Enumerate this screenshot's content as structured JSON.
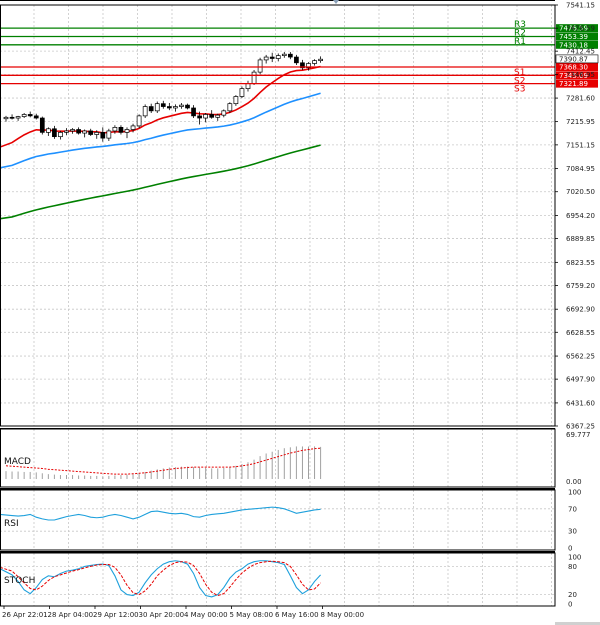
{
  "chart_data": {
    "type": "candlestick",
    "price_ticks": [
      "7541.15",
      "7476.59",
      "7412.45",
      "7346.95",
      "7281.60",
      "7215.95",
      "7151.15",
      "7084.95",
      "7020.50",
      "6954.20",
      "6889.85",
      "6823.55",
      "6759.20",
      "6692.90",
      "6628.55",
      "6562.25",
      "6497.90",
      "6431.60",
      "6367.25"
    ],
    "x_labels": [
      "26 Apr 22:01",
      "28 Apr 04:00",
      "29 Apr 12:00",
      "30 Apr 20:00",
      "4 May 00:00",
      "5 May 08:00",
      "6 May 16:00",
      "8 May 00:00"
    ],
    "current_price": "7390.87",
    "pivot_levels": [
      {
        "name": "R3",
        "value": 7476.59,
        "tag": "7476.59",
        "color": "#008000"
      },
      {
        "name": "R2",
        "value": 7453.39,
        "tag": "7453.39",
        "color": "#008000"
      },
      {
        "name": "R1",
        "value": 7430.18,
        "tag": "7430.18",
        "color": "#008000"
      },
      {
        "name": "S1",
        "value": 7368.3,
        "tag": "7368.30",
        "color": "#e60000"
      },
      {
        "name": "S2",
        "value": 7345.09,
        "tag": "7345.09",
        "color": "#e60000"
      },
      {
        "name": "S3",
        "value": 7321.89,
        "tag": "7321.89",
        "color": "#e60000"
      }
    ],
    "candles": [
      [
        7224,
        7232,
        7216,
        7228
      ],
      [
        7228,
        7236,
        7222,
        7226
      ],
      [
        7226,
        7232,
        7218,
        7230
      ],
      [
        7230,
        7240,
        7226,
        7236
      ],
      [
        7236,
        7244,
        7228,
        7232
      ],
      [
        7232,
        7238,
        7222,
        7226
      ],
      [
        7226,
        7230,
        7180,
        7186
      ],
      [
        7186,
        7200,
        7176,
        7196
      ],
      [
        7196,
        7204,
        7168,
        7174
      ],
      [
        7174,
        7190,
        7166,
        7186
      ],
      [
        7186,
        7198,
        7178,
        7190
      ],
      [
        7190,
        7198,
        7182,
        7194
      ],
      [
        7194,
        7200,
        7180,
        7184
      ],
      [
        7184,
        7194,
        7172,
        7190
      ],
      [
        7190,
        7196,
        7176,
        7180
      ],
      [
        7180,
        7192,
        7168,
        7186
      ],
      [
        7186,
        7200,
        7160,
        7170
      ],
      [
        7170,
        7196,
        7162,
        7190
      ],
      [
        7190,
        7206,
        7182,
        7200
      ],
      [
        7200,
        7206,
        7180,
        7186
      ],
      [
        7186,
        7200,
        7170,
        7194
      ],
      [
        7194,
        7210,
        7186,
        7204
      ],
      [
        7204,
        7236,
        7198,
        7232
      ],
      [
        7232,
        7264,
        7226,
        7258
      ],
      [
        7258,
        7266,
        7240,
        7246
      ],
      [
        7246,
        7272,
        7240,
        7266
      ],
      [
        7266,
        7274,
        7252,
        7258
      ],
      [
        7258,
        7268,
        7248,
        7254
      ],
      [
        7254,
        7264,
        7244,
        7258
      ],
      [
        7258,
        7268,
        7252,
        7262
      ],
      [
        7262,
        7266,
        7250,
        7254
      ],
      [
        7254,
        7262,
        7226,
        7232
      ],
      [
        7232,
        7244,
        7208,
        7226
      ],
      [
        7226,
        7240,
        7214,
        7236
      ],
      [
        7236,
        7248,
        7224,
        7228
      ],
      [
        7228,
        7238,
        7218,
        7234
      ],
      [
        7234,
        7250,
        7228,
        7246
      ],
      [
        7246,
        7270,
        7240,
        7266
      ],
      [
        7266,
        7290,
        7260,
        7286
      ],
      [
        7286,
        7314,
        7282,
        7308
      ],
      [
        7308,
        7330,
        7300,
        7322
      ],
      [
        7322,
        7360,
        7318,
        7354
      ],
      [
        7354,
        7394,
        7348,
        7388
      ],
      [
        7388,
        7402,
        7378,
        7396
      ],
      [
        7396,
        7408,
        7382,
        7392
      ],
      [
        7392,
        7406,
        7384,
        7400
      ],
      [
        7400,
        7410,
        7394,
        7404
      ],
      [
        7404,
        7410,
        7390,
        7396
      ],
      [
        7396,
        7402,
        7374,
        7380
      ],
      [
        7380,
        7388,
        7360,
        7366
      ],
      [
        7366,
        7382,
        7358,
        7378
      ],
      [
        7378,
        7390,
        7372,
        7386
      ],
      [
        7386,
        7398,
        7380,
        7390
      ]
    ],
    "macd": {
      "label": "MACD",
      "axis_top": "69.777",
      "axis_bottom": "0.00",
      "histogram": [
        0.18,
        0.17,
        0.17,
        0.16,
        0.16,
        0.15,
        0.13,
        0.11,
        0.1,
        0.09,
        0.09,
        0.09,
        0.08,
        0.08,
        0.07,
        0.07,
        0.06,
        0.07,
        0.08,
        0.09,
        0.1,
        0.11,
        0.13,
        0.16,
        0.19,
        0.22,
        0.24,
        0.26,
        0.27,
        0.28,
        0.28,
        0.27,
        0.26,
        0.25,
        0.24,
        0.24,
        0.25,
        0.27,
        0.3,
        0.34,
        0.38,
        0.44,
        0.52,
        0.58,
        0.62,
        0.66,
        0.7,
        0.72,
        0.74,
        0.74,
        0.74,
        0.74,
        0.73
      ],
      "signal": [
        0.3,
        0.29,
        0.28,
        0.27,
        0.26,
        0.25,
        0.24,
        0.22,
        0.21,
        0.2,
        0.19,
        0.18,
        0.17,
        0.16,
        0.15,
        0.14,
        0.13,
        0.12,
        0.11,
        0.11,
        0.11,
        0.12,
        0.13,
        0.14,
        0.16,
        0.18,
        0.2,
        0.22,
        0.24,
        0.25,
        0.26,
        0.27,
        0.27,
        0.27,
        0.27,
        0.27,
        0.27,
        0.27,
        0.28,
        0.3,
        0.32,
        0.35,
        0.39,
        0.43,
        0.47,
        0.51,
        0.55,
        0.59,
        0.62,
        0.65,
        0.67,
        0.69,
        0.7
      ]
    },
    "rsi": {
      "label": "RSI",
      "ticks": [
        "100",
        "70",
        "30",
        "0"
      ],
      "values": [
        60,
        58,
        57,
        58,
        60,
        55,
        52,
        50,
        50,
        53,
        56,
        58,
        60,
        58,
        55,
        54,
        55,
        58,
        60,
        58,
        55,
        52,
        55,
        60,
        65,
        66,
        64,
        62,
        61,
        62,
        60,
        56,
        55,
        58,
        60,
        61,
        62,
        64,
        66,
        68,
        69,
        70,
        71,
        72,
        73,
        72,
        70,
        66,
        62,
        64,
        66,
        68,
        69
      ]
    },
    "stoch": {
      "label": "STOCH",
      "ticks": [
        "100",
        "80",
        "20",
        "0"
      ],
      "k": [
        75,
        62,
        48,
        30,
        22,
        35,
        52,
        60,
        58,
        65,
        70,
        72,
        75,
        80,
        82,
        84,
        85,
        82,
        60,
        30,
        20,
        18,
        25,
        45,
        62,
        75,
        85,
        90,
        92,
        90,
        85,
        65,
        35,
        18,
        15,
        20,
        35,
        55,
        68,
        75,
        85,
        90,
        92,
        92,
        90,
        88,
        84,
        60,
        35,
        22,
        30,
        48,
        62
      ],
      "d": [
        78,
        70,
        58,
        45,
        33,
        30,
        38,
        50,
        58,
        62,
        66,
        70,
        73,
        77,
        80,
        83,
        84,
        84,
        78,
        62,
        40,
        24,
        20,
        28,
        42,
        60,
        72,
        82,
        88,
        90,
        89,
        82,
        65,
        42,
        25,
        18,
        22,
        36,
        52,
        66,
        76,
        84,
        88,
        90,
        91,
        90,
        88,
        80,
        62,
        42,
        30,
        32,
        45
      ]
    }
  }
}
